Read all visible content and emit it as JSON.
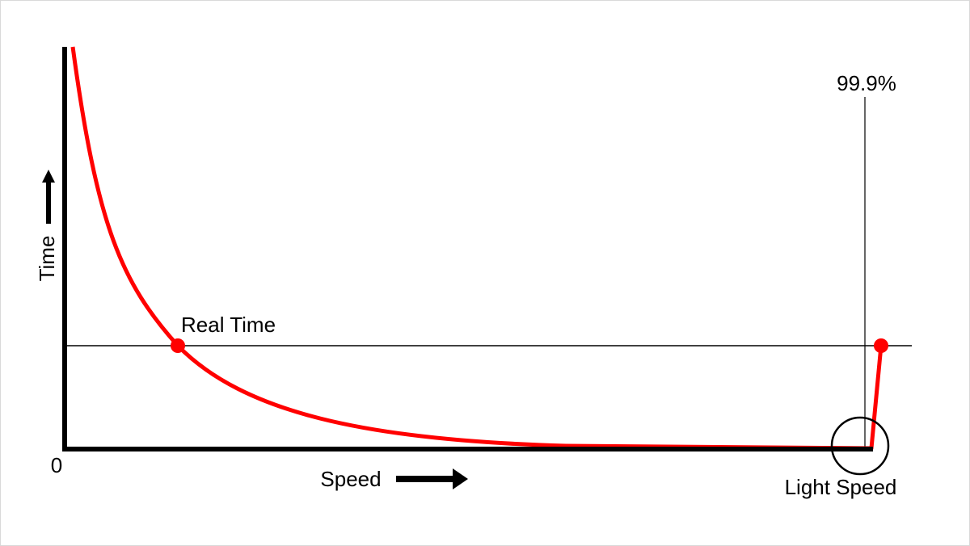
{
  "labels": {
    "y_axis": "Time",
    "x_axis": "Speed",
    "origin": "0",
    "real_time": "Real Time",
    "threshold": "99.9%",
    "light_speed": "Light Speed"
  }
}
